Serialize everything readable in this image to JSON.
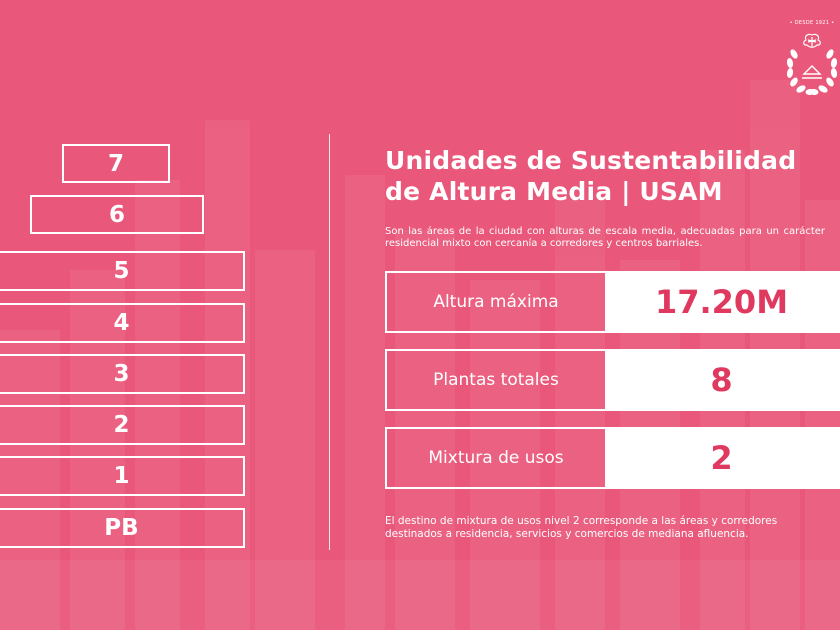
{
  "floors": [
    "7",
    "6",
    "5",
    "4",
    "3",
    "2",
    "1",
    "PB"
  ],
  "title": {
    "line1": "Unidades de Sustentabilidad",
    "line2": "de Altura Media | USAM"
  },
  "subtitle": "Son las áreas de la ciudad con alturas de escala media, adecuadas para un carácter residencial mixto con cercanía a corredores y centros barriales.",
  "metrics": [
    {
      "label": "Altura máxima",
      "value": "17.20M"
    },
    {
      "label": "Plantas totales",
      "value": "8"
    },
    {
      "label": "Mixtura de usos",
      "value": "2"
    }
  ],
  "footnote": "El destino de mixtura de usos nivel 2 corresponde a las áreas y corredores destinados a residencia, servicios y comercios de mediana afluencia.",
  "logo": {
    "text": "• DESDE 1921 •"
  },
  "colors": {
    "background": "#e9577a",
    "accent": "#e0395f",
    "foreground": "#ffffff"
  }
}
